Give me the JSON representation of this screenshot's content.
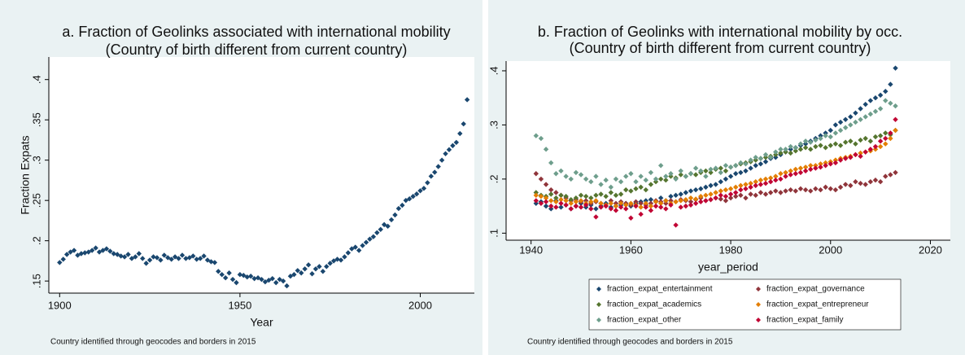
{
  "chart_data": [
    {
      "type": "scatter",
      "title": "a. Fraction of Geolinks associated with international mobility",
      "subtitle": "(Country of birth different from current country)",
      "x_label": "Year",
      "y_label": "Fraction Expats",
      "note": "Country identified through geocodes and borders in 2015",
      "xlim": [
        1897,
        2015
      ],
      "ylim": [
        0.135,
        0.428
      ],
      "xticks": [
        1900,
        1950,
        2000
      ],
      "yticks": [
        {
          "value": 0.15,
          "label": ".15"
        },
        {
          "value": 0.2,
          "label": ".2"
        },
        {
          "value": 0.25,
          "label": ".25"
        },
        {
          "value": 0.3,
          "label": ".3"
        },
        {
          "value": 0.35,
          "label": ".35"
        },
        {
          "value": 0.4,
          "label": ".4"
        }
      ],
      "x": [
        1900,
        1901,
        1902,
        1903,
        1904,
        1905,
        1906,
        1907,
        1908,
        1909,
        1910,
        1911,
        1912,
        1913,
        1914,
        1915,
        1916,
        1917,
        1918,
        1919,
        1920,
        1921,
        1922,
        1923,
        1924,
        1925,
        1926,
        1927,
        1928,
        1929,
        1930,
        1931,
        1932,
        1933,
        1934,
        1935,
        1936,
        1937,
        1938,
        1939,
        1940,
        1941,
        1942,
        1943,
        1944,
        1945,
        1946,
        1947,
        1948,
        1949,
        1950,
        1951,
        1952,
        1953,
        1954,
        1955,
        1956,
        1957,
        1958,
        1959,
        1960,
        1961,
        1962,
        1963,
        1964,
        1965,
        1966,
        1967,
        1968,
        1969,
        1970,
        1971,
        1972,
        1973,
        1974,
        1975,
        1976,
        1977,
        1978,
        1979,
        1980,
        1981,
        1982,
        1983,
        1984,
        1985,
        1986,
        1987,
        1988,
        1989,
        1990,
        1991,
        1992,
        1993,
        1994,
        1995,
        1996,
        1997,
        1998,
        1999,
        2000,
        2001,
        2002,
        2003,
        2004,
        2005,
        2006,
        2007,
        2008,
        2009,
        2010,
        2011,
        2012,
        2013
      ],
      "series": [
        {
          "color": "#1a476f",
          "values": [
            0.173,
            0.177,
            0.183,
            0.186,
            0.188,
            0.182,
            0.184,
            0.185,
            0.186,
            0.188,
            0.191,
            0.186,
            0.188,
            0.19,
            0.187,
            0.184,
            0.183,
            0.181,
            0.18,
            0.183,
            0.178,
            0.18,
            0.184,
            0.178,
            0.172,
            0.176,
            0.18,
            0.179,
            0.176,
            0.182,
            0.179,
            0.177,
            0.18,
            0.178,
            0.182,
            0.178,
            0.179,
            0.181,
            0.177,
            0.178,
            0.181,
            0.176,
            0.174,
            0.173,
            0.162,
            0.158,
            0.154,
            0.16,
            0.152,
            0.148,
            0.158,
            0.157,
            0.155,
            0.156,
            0.153,
            0.154,
            0.152,
            0.149,
            0.151,
            0.153,
            0.148,
            0.152,
            0.15,
            0.144,
            0.156,
            0.158,
            0.163,
            0.16,
            0.165,
            0.17,
            0.159,
            0.165,
            0.168,
            0.162,
            0.168,
            0.172,
            0.175,
            0.177,
            0.176,
            0.18,
            0.185,
            0.19,
            0.192,
            0.188,
            0.194,
            0.198,
            0.202,
            0.205,
            0.21,
            0.214,
            0.22,
            0.218,
            0.226,
            0.232,
            0.24,
            0.244,
            0.25,
            0.252,
            0.255,
            0.258,
            0.262,
            0.265,
            0.272,
            0.28,
            0.285,
            0.292,
            0.3,
            0.308,
            0.313,
            0.318,
            0.322,
            0.333,
            0.345,
            0.375
          ]
        }
      ]
    },
    {
      "type": "scatter",
      "title": "b. Fraction of Geolinks with international mobility by occ.",
      "subtitle": "(Country of birth different from current country)",
      "x_label": "year_period",
      "note": "Country identified through geocodes and borders in 2015",
      "xlim": [
        1935,
        2024
      ],
      "ylim": [
        0.087,
        0.418
      ],
      "xticks": [
        1940,
        1960,
        1980,
        2000,
        2020
      ],
      "yticks": [
        {
          "value": 0.1,
          "label": ".1"
        },
        {
          "value": 0.2,
          "label": ".2"
        },
        {
          "value": 0.3,
          "label": ".3"
        },
        {
          "value": 0.4,
          "label": ".4"
        }
      ],
      "x": [
        1941,
        1942,
        1943,
        1944,
        1945,
        1946,
        1947,
        1948,
        1949,
        1950,
        1951,
        1952,
        1953,
        1954,
        1955,
        1956,
        1957,
        1958,
        1959,
        1960,
        1961,
        1962,
        1963,
        1964,
        1965,
        1966,
        1967,
        1968,
        1969,
        1970,
        1971,
        1972,
        1973,
        1974,
        1975,
        1976,
        1977,
        1978,
        1979,
        1980,
        1981,
        1982,
        1983,
        1984,
        1985,
        1986,
        1987,
        1988,
        1989,
        1990,
        1991,
        1992,
        1993,
        1994,
        1995,
        1996,
        1997,
        1998,
        1999,
        2000,
        2001,
        2002,
        2003,
        2004,
        2005,
        2006,
        2007,
        2008,
        2009,
        2010,
        2011,
        2012,
        2013
      ],
      "series": [
        {
          "name": "fraction_expat_entertainment",
          "color": "#1a476f",
          "values": [
            0.155,
            0.158,
            0.15,
            0.145,
            0.16,
            0.148,
            0.152,
            0.145,
            0.15,
            0.155,
            0.148,
            0.152,
            0.145,
            0.15,
            0.155,
            0.148,
            0.15,
            0.152,
            0.155,
            0.15,
            0.155,
            0.158,
            0.16,
            0.162,
            0.158,
            0.165,
            0.16,
            0.168,
            0.17,
            0.172,
            0.175,
            0.178,
            0.18,
            0.182,
            0.185,
            0.188,
            0.19,
            0.195,
            0.2,
            0.205,
            0.21,
            0.212,
            0.215,
            0.22,
            0.225,
            0.228,
            0.232,
            0.238,
            0.24,
            0.245,
            0.25,
            0.255,
            0.258,
            0.262,
            0.265,
            0.27,
            0.275,
            0.28,
            0.285,
            0.29,
            0.3,
            0.305,
            0.31,
            0.315,
            0.322,
            0.33,
            0.338,
            0.345,
            0.35,
            0.355,
            0.362,
            0.375,
            0.405
          ]
        },
        {
          "name": "fraction_expat_governance",
          "color": "#90353b",
          "values": [
            0.21,
            0.2,
            0.19,
            0.18,
            0.175,
            0.17,
            0.165,
            0.16,
            0.162,
            0.158,
            0.16,
            0.155,
            0.158,
            0.155,
            0.152,
            0.16,
            0.155,
            0.158,
            0.155,
            0.152,
            0.158,
            0.155,
            0.152,
            0.155,
            0.16,
            0.158,
            0.155,
            0.16,
            0.158,
            0.162,
            0.16,
            0.158,
            0.162,
            0.165,
            0.16,
            0.162,
            0.165,
            0.163,
            0.16,
            0.165,
            0.168,
            0.17,
            0.165,
            0.172,
            0.17,
            0.175,
            0.172,
            0.175,
            0.178,
            0.175,
            0.178,
            0.18,
            0.178,
            0.182,
            0.18,
            0.178,
            0.182,
            0.18,
            0.185,
            0.182,
            0.18,
            0.185,
            0.19,
            0.188,
            0.195,
            0.192,
            0.19,
            0.195,
            0.198,
            0.195,
            0.205,
            0.208,
            0.212
          ]
        },
        {
          "name": "fraction_expat_academics",
          "color": "#55752f",
          "values": [
            0.175,
            0.17,
            0.168,
            0.172,
            0.165,
            0.17,
            0.168,
            0.162,
            0.165,
            0.17,
            0.168,
            0.165,
            0.17,
            0.172,
            0.168,
            0.175,
            0.17,
            0.172,
            0.18,
            0.178,
            0.182,
            0.185,
            0.18,
            0.19,
            0.195,
            0.2,
            0.198,
            0.205,
            0.202,
            0.208,
            0.205,
            0.21,
            0.208,
            0.212,
            0.215,
            0.212,
            0.218,
            0.22,
            0.215,
            0.222,
            0.225,
            0.228,
            0.23,
            0.232,
            0.235,
            0.238,
            0.24,
            0.242,
            0.245,
            0.248,
            0.25,
            0.248,
            0.252,
            0.255,
            0.258,
            0.255,
            0.26,
            0.262,
            0.258,
            0.262,
            0.265,
            0.262,
            0.268,
            0.27,
            0.265,
            0.272,
            0.275,
            0.27,
            0.278,
            0.28,
            0.285,
            0.282,
            0.29
          ]
        },
        {
          "name": "fraction_expat_entrepreneur",
          "color": "#e37e00",
          "values": [
            0.17,
            0.168,
            0.165,
            0.16,
            0.158,
            0.162,
            0.16,
            0.155,
            0.158,
            0.16,
            0.155,
            0.158,
            0.16,
            0.155,
            0.152,
            0.155,
            0.15,
            0.155,
            0.152,
            0.155,
            0.152,
            0.148,
            0.155,
            0.15,
            0.158,
            0.155,
            0.16,
            0.155,
            0.158,
            0.16,
            0.162,
            0.165,
            0.163,
            0.168,
            0.17,
            0.172,
            0.175,
            0.178,
            0.18,
            0.182,
            0.185,
            0.188,
            0.19,
            0.192,
            0.195,
            0.198,
            0.2,
            0.202,
            0.205,
            0.21,
            0.212,
            0.215,
            0.218,
            0.22,
            0.222,
            0.225,
            0.225,
            0.228,
            0.23,
            0.232,
            0.235,
            0.238,
            0.24,
            0.242,
            0.245,
            0.248,
            0.25,
            0.252,
            0.255,
            0.26,
            0.265,
            0.275,
            0.29
          ]
        },
        {
          "name": "fraction_expat_other",
          "color": "#6e9e8c",
          "values": [
            0.28,
            0.275,
            0.255,
            0.23,
            0.21,
            0.215,
            0.205,
            0.2,
            0.212,
            0.208,
            0.2,
            0.195,
            0.205,
            0.19,
            0.198,
            0.185,
            0.2,
            0.195,
            0.205,
            0.21,
            0.195,
            0.205,
            0.198,
            0.212,
            0.2,
            0.225,
            0.205,
            0.21,
            0.2,
            0.215,
            0.205,
            0.21,
            0.22,
            0.215,
            0.205,
            0.218,
            0.22,
            0.212,
            0.225,
            0.222,
            0.225,
            0.23,
            0.228,
            0.235,
            0.24,
            0.238,
            0.245,
            0.24,
            0.25,
            0.255,
            0.255,
            0.26,
            0.258,
            0.265,
            0.27,
            0.268,
            0.272,
            0.275,
            0.28,
            0.278,
            0.285,
            0.29,
            0.295,
            0.3,
            0.305,
            0.31,
            0.315,
            0.32,
            0.325,
            0.33,
            0.345,
            0.34,
            0.335
          ]
        },
        {
          "name": "fraction_expat_family",
          "color": "#c10534",
          "values": [
            0.16,
            0.155,
            0.158,
            0.15,
            0.148,
            0.155,
            0.152,
            0.145,
            0.15,
            0.148,
            0.152,
            0.145,
            0.13,
            0.148,
            0.15,
            0.145,
            0.142,
            0.148,
            0.145,
            0.128,
            0.15,
            0.135,
            0.148,
            0.142,
            0.15,
            0.148,
            0.145,
            0.152,
            0.115,
            0.148,
            0.15,
            0.152,
            0.155,
            0.158,
            0.16,
            0.162,
            0.165,
            0.17,
            0.168,
            0.172,
            0.175,
            0.18,
            0.182,
            0.185,
            0.188,
            0.19,
            0.192,
            0.195,
            0.198,
            0.2,
            0.205,
            0.208,
            0.21,
            0.212,
            0.215,
            0.218,
            0.22,
            0.222,
            0.225,
            0.228,
            0.23,
            0.235,
            0.238,
            0.24,
            0.245,
            0.242,
            0.25,
            0.255,
            0.26,
            0.27,
            0.275,
            0.285,
            0.31
          ]
        }
      ]
    }
  ]
}
